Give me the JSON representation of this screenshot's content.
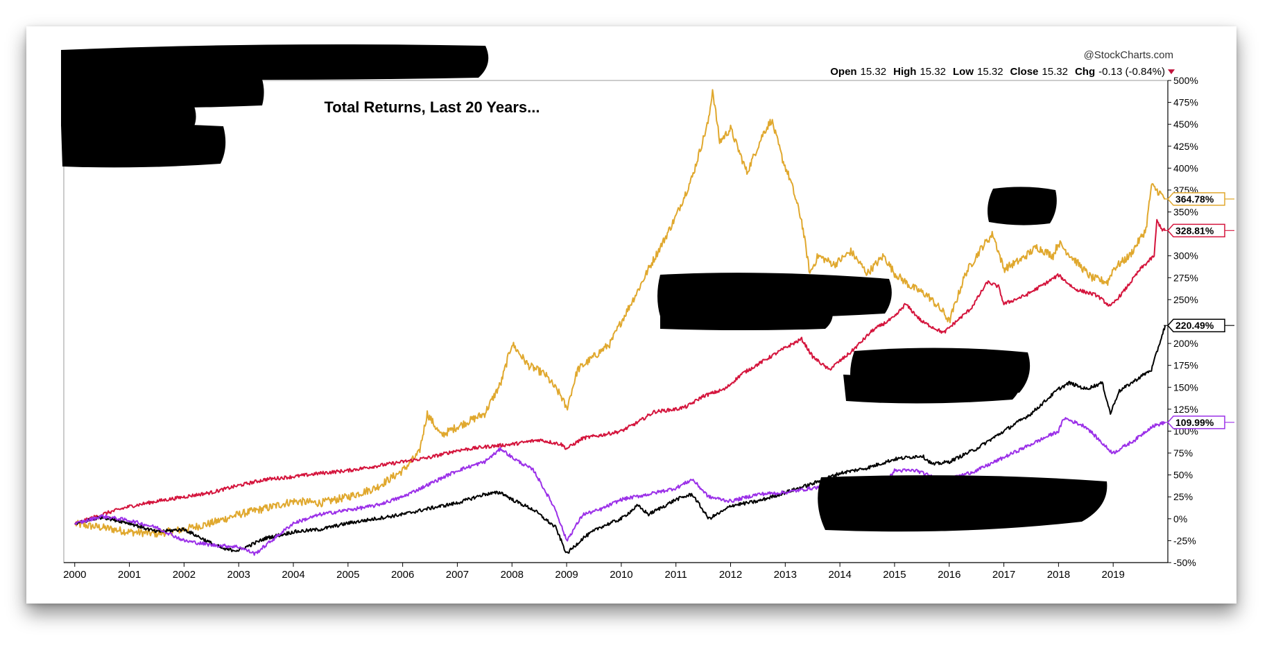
{
  "attribution": "@StockCharts.com",
  "ohlc": {
    "open_label": "Open",
    "open": "15.32",
    "high_label": "High",
    "high": "15.32",
    "low_label": "Low",
    "low": "15.32",
    "close_label": "Close",
    "close": "15.32",
    "chg_label": "Chg",
    "chg": "-0.13 (-0.84%)"
  },
  "chart_data": {
    "type": "line",
    "title": "Total Returns, Last 20 Years...",
    "xlabel": "",
    "ylabel": "",
    "ylim": [
      -50,
      500
    ],
    "xlim": [
      1999.8,
      2020.0
    ],
    "x_ticks": [
      "2000",
      "2001",
      "2002",
      "2003",
      "2004",
      "2005",
      "2006",
      "2007",
      "2008",
      "2009",
      "2010",
      "2011",
      "2012",
      "2013",
      "2014",
      "2015",
      "2016",
      "2017",
      "2018",
      "2019"
    ],
    "y_ticks": [
      "500%",
      "475%",
      "450%",
      "425%",
      "400%",
      "375%",
      "350%",
      "300%",
      "275%",
      "250%",
      "200%",
      "175%",
      "150%",
      "125%",
      "100%",
      "75%",
      "50%",
      "25%",
      "0%",
      "-25%",
      "-50%"
    ],
    "grid": false,
    "series": [
      {
        "color": "#E0A82E",
        "end_label": "364.78%",
        "points": [
          [
            2000,
            -6
          ],
          [
            2000.5,
            -10
          ],
          [
            2001,
            -15
          ],
          [
            2001.5,
            -17
          ],
          [
            2002,
            -12
          ],
          [
            2002.5,
            -5
          ],
          [
            2003,
            5
          ],
          [
            2003.5,
            12
          ],
          [
            2004,
            20
          ],
          [
            2004.5,
            18
          ],
          [
            2005,
            25
          ],
          [
            2005.5,
            35
          ],
          [
            2006,
            55
          ],
          [
            2006.3,
            75
          ],
          [
            2006.45,
            120
          ],
          [
            2006.7,
            95
          ],
          [
            2007,
            105
          ],
          [
            2007.5,
            120
          ],
          [
            2007.8,
            155
          ],
          [
            2008,
            200
          ],
          [
            2008.3,
            175
          ],
          [
            2008.6,
            165
          ],
          [
            2008.9,
            140
          ],
          [
            2009,
            125
          ],
          [
            2009.2,
            170
          ],
          [
            2009.5,
            185
          ],
          [
            2009.8,
            200
          ],
          [
            2010,
            225
          ],
          [
            2010.3,
            260
          ],
          [
            2010.5,
            285
          ],
          [
            2010.8,
            320
          ],
          [
            2011,
            345
          ],
          [
            2011.3,
            390
          ],
          [
            2011.6,
            455
          ],
          [
            2011.67,
            490
          ],
          [
            2011.8,
            430
          ],
          [
            2012,
            445
          ],
          [
            2012.3,
            395
          ],
          [
            2012.6,
            440
          ],
          [
            2012.75,
            455
          ],
          [
            2012.95,
            410
          ],
          [
            2013.1,
            385
          ],
          [
            2013.3,
            340
          ],
          [
            2013.45,
            280
          ],
          [
            2013.6,
            300
          ],
          [
            2013.9,
            290
          ],
          [
            2014.2,
            305
          ],
          [
            2014.5,
            280
          ],
          [
            2014.8,
            300
          ],
          [
            2015,
            280
          ],
          [
            2015.3,
            265
          ],
          [
            2015.6,
            255
          ],
          [
            2015.9,
            235
          ],
          [
            2016,
            225
          ],
          [
            2016.3,
            280
          ],
          [
            2016.6,
            310
          ],
          [
            2016.8,
            325
          ],
          [
            2017,
            285
          ],
          [
            2017.3,
            295
          ],
          [
            2017.6,
            310
          ],
          [
            2017.9,
            300
          ],
          [
            2018,
            315
          ],
          [
            2018.3,
            295
          ],
          [
            2018.6,
            275
          ],
          [
            2018.9,
            270
          ],
          [
            2019,
            285
          ],
          [
            2019.3,
            300
          ],
          [
            2019.6,
            330
          ],
          [
            2019.7,
            380
          ],
          [
            2019.85,
            372
          ],
          [
            2019.95,
            364.78
          ]
        ]
      },
      {
        "color": "#D4143C",
        "end_label": "328.81%",
        "points": [
          [
            2000,
            -6
          ],
          [
            2000.5,
            5
          ],
          [
            2001,
            14
          ],
          [
            2001.5,
            20
          ],
          [
            2002,
            25
          ],
          [
            2002.5,
            30
          ],
          [
            2003,
            38
          ],
          [
            2003.5,
            45
          ],
          [
            2004,
            48
          ],
          [
            2004.5,
            52
          ],
          [
            2005,
            55
          ],
          [
            2005.5,
            60
          ],
          [
            2006,
            65
          ],
          [
            2006.5,
            70
          ],
          [
            2007,
            78
          ],
          [
            2007.5,
            82
          ],
          [
            2008,
            85
          ],
          [
            2008.5,
            90
          ],
          [
            2008.9,
            85
          ],
          [
            2009,
            80
          ],
          [
            2009.3,
            92
          ],
          [
            2009.6,
            95
          ],
          [
            2010,
            100
          ],
          [
            2010.3,
            110
          ],
          [
            2010.6,
            122
          ],
          [
            2011,
            125
          ],
          [
            2011.2,
            128
          ],
          [
            2011.5,
            140
          ],
          [
            2011.9,
            148
          ],
          [
            2012.2,
            165
          ],
          [
            2012.6,
            180
          ],
          [
            2013,
            195
          ],
          [
            2013.3,
            205
          ],
          [
            2013.5,
            185
          ],
          [
            2013.8,
            170
          ],
          [
            2014.2,
            190
          ],
          [
            2014.6,
            215
          ],
          [
            2015,
            230
          ],
          [
            2015.2,
            245
          ],
          [
            2015.5,
            225
          ],
          [
            2015.9,
            212
          ],
          [
            2016,
            218
          ],
          [
            2016.4,
            240
          ],
          [
            2016.7,
            270
          ],
          [
            2016.9,
            265
          ],
          [
            2017,
            245
          ],
          [
            2017.4,
            255
          ],
          [
            2017.8,
            270
          ],
          [
            2018,
            278
          ],
          [
            2018.3,
            262
          ],
          [
            2018.7,
            255
          ],
          [
            2018.95,
            242
          ],
          [
            2019.2,
            260
          ],
          [
            2019.5,
            285
          ],
          [
            2019.75,
            300
          ],
          [
            2019.8,
            340
          ],
          [
            2019.9,
            330
          ],
          [
            2019.95,
            328.81
          ]
        ]
      },
      {
        "color": "#000000",
        "end_label": "220.49%",
        "points": [
          [
            2000,
            -6
          ],
          [
            2000.5,
            2
          ],
          [
            2001,
            -5
          ],
          [
            2001.5,
            -15
          ],
          [
            2002,
            -12
          ],
          [
            2002.5,
            -28
          ],
          [
            2002.75,
            -35
          ],
          [
            2003,
            -36
          ],
          [
            2003.5,
            -22
          ],
          [
            2004,
            -15
          ],
          [
            2004.5,
            -12
          ],
          [
            2005,
            -5
          ],
          [
            2005.5,
            0
          ],
          [
            2006,
            5
          ],
          [
            2006.5,
            12
          ],
          [
            2007,
            18
          ],
          [
            2007.5,
            28
          ],
          [
            2007.8,
            30
          ],
          [
            2008,
            22
          ],
          [
            2008.4,
            10
          ],
          [
            2008.8,
            -10
          ],
          [
            2009,
            -40
          ],
          [
            2009.3,
            -22
          ],
          [
            2009.6,
            -10
          ],
          [
            2010,
            0
          ],
          [
            2010.3,
            15
          ],
          [
            2010.5,
            5
          ],
          [
            2010.8,
            15
          ],
          [
            2011,
            22
          ],
          [
            2011.3,
            28
          ],
          [
            2011.6,
            0
          ],
          [
            2011.9,
            10
          ],
          [
            2012,
            15
          ],
          [
            2012.5,
            20
          ],
          [
            2013,
            30
          ],
          [
            2013.5,
            40
          ],
          [
            2014,
            52
          ],
          [
            2014.5,
            58
          ],
          [
            2015,
            68
          ],
          [
            2015.5,
            72
          ],
          [
            2015.7,
            62
          ],
          [
            2016,
            65
          ],
          [
            2016.5,
            80
          ],
          [
            2017,
            100
          ],
          [
            2017.5,
            120
          ],
          [
            2018,
            148
          ],
          [
            2018.2,
            155
          ],
          [
            2018.5,
            148
          ],
          [
            2018.8,
            155
          ],
          [
            2018.95,
            120
          ],
          [
            2019.1,
            145
          ],
          [
            2019.5,
            162
          ],
          [
            2019.7,
            170
          ],
          [
            2019.95,
            220.49
          ]
        ]
      },
      {
        "color": "#9B30E8",
        "end_label": "109.99%",
        "points": [
          [
            2000,
            -6
          ],
          [
            2000.5,
            3
          ],
          [
            2001,
            -2
          ],
          [
            2001.5,
            -10
          ],
          [
            2002,
            -25
          ],
          [
            2002.5,
            -30
          ],
          [
            2003,
            -32
          ],
          [
            2003.3,
            -40
          ],
          [
            2003.6,
            -25
          ],
          [
            2004,
            -5
          ],
          [
            2004.5,
            5
          ],
          [
            2005,
            10
          ],
          [
            2005.5,
            15
          ],
          [
            2006,
            25
          ],
          [
            2006.5,
            40
          ],
          [
            2007,
            55
          ],
          [
            2007.5,
            65
          ],
          [
            2007.8,
            80
          ],
          [
            2008,
            70
          ],
          [
            2008.4,
            55
          ],
          [
            2008.8,
            10
          ],
          [
            2009,
            -25
          ],
          [
            2009.3,
            5
          ],
          [
            2009.6,
            10
          ],
          [
            2010,
            22
          ],
          [
            2010.5,
            28
          ],
          [
            2011,
            35
          ],
          [
            2011.3,
            45
          ],
          [
            2011.6,
            25
          ],
          [
            2012,
            20
          ],
          [
            2012.5,
            28
          ],
          [
            2013,
            30
          ],
          [
            2013.5,
            35
          ],
          [
            2014,
            40
          ],
          [
            2014.4,
            45
          ],
          [
            2014.7,
            30
          ],
          [
            2015,
            55
          ],
          [
            2015.4,
            55
          ],
          [
            2015.8,
            45
          ],
          [
            2016,
            45
          ],
          [
            2016.5,
            55
          ],
          [
            2017,
            70
          ],
          [
            2017.5,
            85
          ],
          [
            2018,
            100
          ],
          [
            2018.1,
            115
          ],
          [
            2018.5,
            105
          ],
          [
            2018.9,
            80
          ],
          [
            2019,
            75
          ],
          [
            2019.4,
            90
          ],
          [
            2019.7,
            105
          ],
          [
            2019.95,
            109.99
          ]
        ]
      }
    ]
  }
}
